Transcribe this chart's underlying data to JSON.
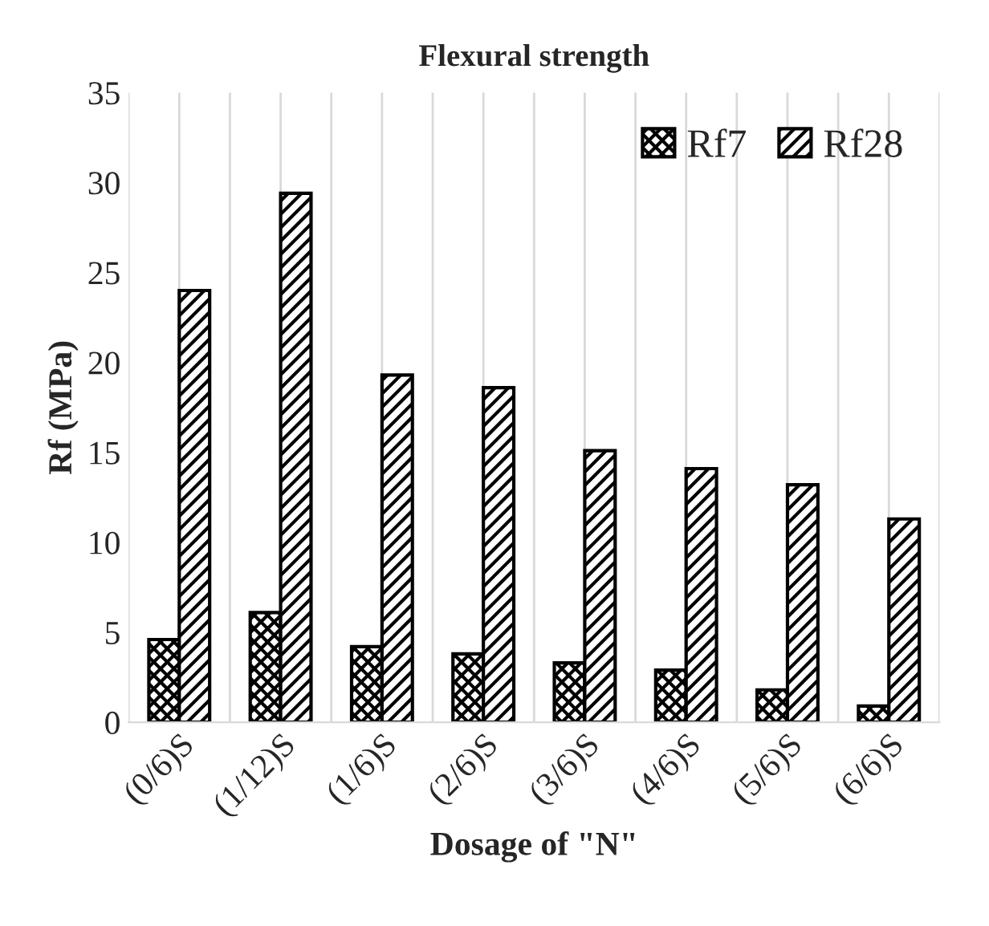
{
  "chart_data": {
    "type": "bar",
    "title": "Flexural strength",
    "xlabel": "Dosage of \"N\"",
    "ylabel": "Rf (MPa)",
    "categories": [
      "(0/6)S",
      "(1/12)S",
      "(1/6)S",
      "(2/6)S",
      "(3/6)S",
      "(4/6)S",
      "(5/6)S",
      "(6/6)S"
    ],
    "series": [
      {
        "name": "Rf7",
        "color": "#000000",
        "values": [
          4.6,
          6.1,
          4.2,
          3.8,
          3.3,
          2.9,
          1.8,
          0.9
        ]
      },
      {
        "name": "Rf28",
        "color": "#000000",
        "values": [
          24.0,
          29.4,
          19.3,
          18.6,
          15.1,
          14.1,
          13.2,
          11.3
        ]
      }
    ],
    "ylim": [
      0,
      35
    ],
    "yticks": [
      0,
      5,
      10,
      15,
      20,
      25,
      30,
      35
    ],
    "grid": "x",
    "legend": "top right"
  }
}
